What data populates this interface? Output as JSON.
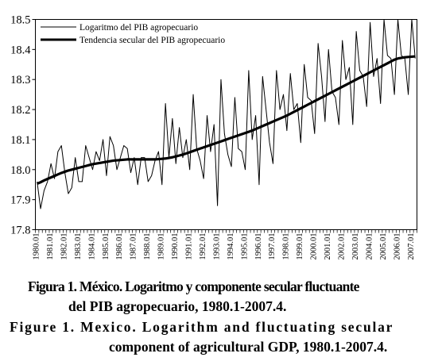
{
  "chart_data": {
    "type": "line",
    "ylim": [
      17.8,
      18.5
    ],
    "yticks": [
      "17.8",
      "17.9",
      "18.0",
      "18.1",
      "18.2",
      "18.3",
      "18.4",
      "18.5"
    ],
    "xtick_labels": [
      "1980.01",
      "1981.01",
      "1982.01",
      "1983.01",
      "1984.01",
      "1985.01",
      "1986.01",
      "1987.01",
      "1988.01",
      "1989.01",
      "1990.01",
      "1991.01",
      "1992.01",
      "1993.01",
      "1994.01",
      "1995.01",
      "1996.01",
      "1997.01",
      "1998.01",
      "1999.01",
      "2000.01",
      "2001.01",
      "2002.01",
      "2003.01",
      "2004.01",
      "2005.01",
      "2006.01",
      "2007.01"
    ],
    "grid": false,
    "legend_position": "top-left",
    "series": [
      {
        "name": "Logaritmo del PIB agropecuario",
        "values": [
          17.96,
          17.87,
          17.93,
          17.96,
          18.02,
          17.97,
          18.06,
          18.08,
          17.99,
          17.92,
          17.94,
          18.04,
          17.96,
          17.96,
          18.08,
          18.04,
          18.0,
          18.06,
          18.03,
          18.1,
          17.98,
          18.11,
          18.08,
          18.0,
          18.04,
          18.08,
          18.07,
          17.99,
          18.07,
          18.04,
          17.95,
          18.04,
          18.04,
          17.96,
          17.98,
          18.03,
          18.06,
          17.95,
          18.22,
          18.04,
          18.17,
          18.02,
          18.14,
          18.04,
          18.1,
          18.0,
          18.25,
          18.07,
          18.03,
          17.97,
          18.18,
          18.06,
          18.15,
          17.88,
          18.3,
          18.12,
          18.05,
          18.01,
          18.24,
          18.07,
          18.06,
          18.0,
          18.33,
          18.1,
          18.18,
          17.95,
          18.31,
          18.2,
          18.09,
          18.02,
          18.33,
          18.2,
          18.25,
          18.13,
          18.32,
          18.2,
          18.22,
          18.09,
          18.35,
          18.24,
          18.23,
          18.12,
          18.42,
          18.19,
          18.31,
          18.16,
          18.4,
          18.26,
          18.24,
          18.15,
          18.43,
          18.3,
          18.34,
          18.15,
          18.46,
          18.33,
          18.31,
          18.21,
          18.49,
          18.31,
          18.37,
          18.22,
          18.5,
          18.38,
          18.37,
          18.25,
          18.5,
          18.38,
          18.37,
          18.25,
          18.5,
          18.37
        ],
        "display_count": 110
      },
      {
        "name": "Tendencia secular del PIB agropecuario",
        "values": [
          17.953,
          17.958,
          17.964,
          17.969,
          17.974,
          17.979,
          17.984,
          17.989,
          17.993,
          17.997,
          18.0,
          18.003,
          18.006,
          18.009,
          18.012,
          18.015,
          18.018,
          18.02,
          18.022,
          18.024,
          18.026,
          18.028,
          18.03,
          18.031,
          18.032,
          18.033,
          18.034,
          18.034,
          18.034,
          18.034,
          18.034,
          18.034,
          18.034,
          18.034,
          18.034,
          18.035,
          18.036,
          18.037,
          18.039,
          18.041,
          18.044,
          18.047,
          18.05,
          18.054,
          18.058,
          18.062,
          18.066,
          18.07,
          18.074,
          18.078,
          18.082,
          18.086,
          18.09,
          18.094,
          18.098,
          18.102,
          18.106,
          18.11,
          18.114,
          18.118,
          18.122,
          18.126,
          18.13,
          18.135,
          18.14,
          18.145,
          18.15,
          18.155,
          18.16,
          18.165,
          18.17,
          18.175,
          18.18,
          18.186,
          18.192,
          18.198,
          18.204,
          18.21,
          18.216,
          18.222,
          18.228,
          18.234,
          18.24,
          18.246,
          18.252,
          18.258,
          18.264,
          18.27,
          18.276,
          18.282,
          18.288,
          18.294,
          18.3,
          18.306,
          18.312,
          18.318,
          18.324,
          18.33,
          18.336,
          18.342,
          18.348,
          18.354,
          18.36,
          18.366,
          18.37,
          18.372,
          18.374,
          18.375,
          18.376,
          18.377
        ],
        "display_count": 110
      }
    ]
  },
  "caption": {
    "es_line1": "Figura 1. México. Logaritmo y componente secular fluctuante",
    "es_line2": "del PIB agropecuario, 1980.1-2007.4.",
    "en_line1": "Figure 1. Mexico. Logarithm and fluctuating secular",
    "en_line2": "component of agricultural GDP, 1980.1-2007.4."
  }
}
